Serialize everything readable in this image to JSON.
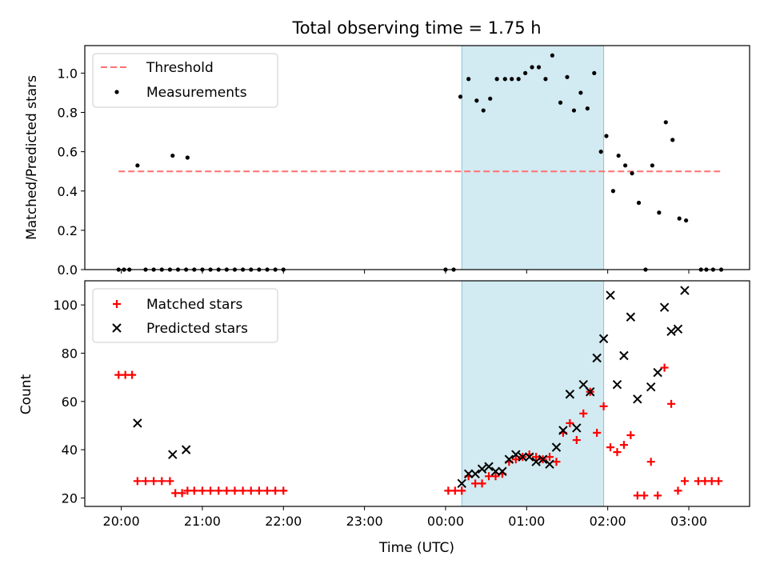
{
  "title": "Total observing time = 1.75 h",
  "colors": {
    "threshold": "#ff7070",
    "measurement": "#000000",
    "matched": "#ff0000",
    "predicted": "#000000",
    "shade": "#add8e6"
  },
  "chart_data": [
    {
      "type": "scatter",
      "ylabel": "Matched/Predicted stars",
      "xlim_hours": [
        19.55,
        27.75
      ],
      "ylim": [
        0,
        1.14
      ],
      "shaded_interval": [
        "00:12",
        "01:57"
      ],
      "xticks": [
        "20:00",
        "21:00",
        "22:00",
        "23:00",
        "00:00",
        "01:00",
        "02:00",
        "03:00"
      ],
      "yticks": [
        "0.0",
        "0.2",
        "0.4",
        "0.6",
        "0.8",
        "1.0"
      ],
      "legend": {
        "placement": "upper left",
        "threshold_label": "Threshold",
        "measurements_label": "Measurements"
      },
      "threshold": {
        "value": 0.5,
        "x_start": "19:58",
        "x_end": "03:24"
      },
      "series": [
        {
          "name": "Measurements",
          "points": [
            [
              "19:58",
              0
            ],
            [
              "20:02",
              0
            ],
            [
              "20:06",
              0
            ],
            [
              "20:12",
              0.53
            ],
            [
              "20:18",
              0
            ],
            [
              "20:24",
              0
            ],
            [
              "20:30",
              0
            ],
            [
              "20:36",
              0
            ],
            [
              "20:38",
              0.58
            ],
            [
              "20:42",
              0
            ],
            [
              "20:48",
              0
            ],
            [
              "20:49",
              0.57
            ],
            [
              "20:54",
              0
            ],
            [
              "21:00",
              0
            ],
            [
              "21:06",
              0
            ],
            [
              "21:12",
              0
            ],
            [
              "21:18",
              0
            ],
            [
              "21:24",
              0
            ],
            [
              "21:30",
              0
            ],
            [
              "21:36",
              0
            ],
            [
              "21:42",
              0
            ],
            [
              "21:48",
              0
            ],
            [
              "21:54",
              0
            ],
            [
              "22:00",
              0
            ],
            [
              "00:00",
              0
            ],
            [
              "00:06",
              0
            ],
            [
              "00:11",
              0.88
            ],
            [
              "00:17",
              0.97
            ],
            [
              "00:23",
              0.86
            ],
            [
              "00:28",
              0.81
            ],
            [
              "00:33",
              0.87
            ],
            [
              "00:38",
              0.97
            ],
            [
              "00:44",
              0.97
            ],
            [
              "00:49",
              0.97
            ],
            [
              "00:54",
              0.97
            ],
            [
              "00:59",
              1.0
            ],
            [
              "01:04",
              1.03
            ],
            [
              "01:09",
              1.03
            ],
            [
              "01:14",
              0.97
            ],
            [
              "01:19",
              1.09
            ],
            [
              "01:25",
              0.85
            ],
            [
              "01:30",
              0.98
            ],
            [
              "01:35",
              0.81
            ],
            [
              "01:40",
              0.9
            ],
            [
              "01:45",
              0.82
            ],
            [
              "01:50",
              1.0
            ],
            [
              "01:55",
              0.6
            ],
            [
              "01:59",
              0.68
            ],
            [
              "02:04",
              0.4
            ],
            [
              "02:08",
              0.58
            ],
            [
              "02:13",
              0.53
            ],
            [
              "02:18",
              0.49
            ],
            [
              "02:23",
              0.34
            ],
            [
              "02:28",
              0
            ],
            [
              "02:33",
              0.53
            ],
            [
              "02:38",
              0.29
            ],
            [
              "02:43",
              0.75
            ],
            [
              "02:48",
              0.66
            ],
            [
              "02:53",
              0.26
            ],
            [
              "02:58",
              0.25
            ],
            [
              "03:09",
              0
            ],
            [
              "03:13",
              0
            ],
            [
              "03:18",
              0
            ],
            [
              "03:24",
              0
            ]
          ]
        }
      ]
    },
    {
      "type": "scatter",
      "xlabel": "Time (UTC)",
      "ylabel": "Count",
      "xlim_hours": [
        19.55,
        27.75
      ],
      "ylim": [
        16.5,
        110
      ],
      "shaded_interval": [
        "00:12",
        "01:57"
      ],
      "xticks": [
        "20:00",
        "21:00",
        "22:00",
        "23:00",
        "00:00",
        "01:00",
        "02:00",
        "03:00"
      ],
      "yticks": [
        "20",
        "40",
        "60",
        "80",
        "100"
      ],
      "legend": {
        "placement": "upper left"
      },
      "series": [
        {
          "name": "Matched stars",
          "points": [
            [
              "19:58",
              71
            ],
            [
              "20:03",
              71
            ],
            [
              "20:08",
              71
            ],
            [
              "20:12",
              27
            ],
            [
              "20:18",
              27
            ],
            [
              "20:24",
              27
            ],
            [
              "20:30",
              27
            ],
            [
              "20:36",
              27
            ],
            [
              "20:40",
              22
            ],
            [
              "20:45",
              22
            ],
            [
              "20:49",
              23
            ],
            [
              "20:54",
              23
            ],
            [
              "21:00",
              23
            ],
            [
              "21:06",
              23
            ],
            [
              "21:12",
              23
            ],
            [
              "21:18",
              23
            ],
            [
              "21:24",
              23
            ],
            [
              "21:30",
              23
            ],
            [
              "21:36",
              23
            ],
            [
              "21:42",
              23
            ],
            [
              "21:48",
              23
            ],
            [
              "21:54",
              23
            ],
            [
              "22:00",
              23
            ],
            [
              "00:02",
              23
            ],
            [
              "00:07",
              23
            ],
            [
              "00:12",
              23
            ],
            [
              "00:17",
              29
            ],
            [
              "00:22",
              26
            ],
            [
              "00:27",
              26
            ],
            [
              "00:32",
              29
            ],
            [
              "00:37",
              29
            ],
            [
              "00:42",
              30
            ],
            [
              "00:47",
              35
            ],
            [
              "00:52",
              36
            ],
            [
              "00:57",
              37
            ],
            [
              "01:02",
              38
            ],
            [
              "01:07",
              37
            ],
            [
              "01:12",
              36
            ],
            [
              "01:17",
              37
            ],
            [
              "01:22",
              35
            ],
            [
              "01:27",
              47
            ],
            [
              "01:32",
              51
            ],
            [
              "01:37",
              44
            ],
            [
              "01:42",
              55
            ],
            [
              "01:47",
              64
            ],
            [
              "01:52",
              47
            ],
            [
              "01:57",
              58
            ],
            [
              "02:02",
              41
            ],
            [
              "02:07",
              39
            ],
            [
              "02:12",
              42
            ],
            [
              "02:17",
              46
            ],
            [
              "02:22",
              21
            ],
            [
              "02:27",
              21
            ],
            [
              "02:32",
              35
            ],
            [
              "02:37",
              21
            ],
            [
              "02:42",
              74
            ],
            [
              "02:47",
              59
            ],
            [
              "02:52",
              23
            ],
            [
              "02:57",
              27
            ],
            [
              "03:07",
              27
            ],
            [
              "03:12",
              27
            ],
            [
              "03:17",
              27
            ],
            [
              "03:22",
              27
            ]
          ]
        },
        {
          "name": "Predicted stars",
          "points": [
            [
              "20:12",
              51
            ],
            [
              "20:38",
              38
            ],
            [
              "20:48",
              40
            ],
            [
              "00:12",
              26
            ],
            [
              "00:17",
              30
            ],
            [
              "00:22",
              30
            ],
            [
              "00:27",
              32
            ],
            [
              "00:32",
              33
            ],
            [
              "00:37",
              31
            ],
            [
              "00:42",
              31
            ],
            [
              "00:47",
              36
            ],
            [
              "00:52",
              38
            ],
            [
              "00:57",
              37
            ],
            [
              "01:02",
              37
            ],
            [
              "01:07",
              35
            ],
            [
              "01:12",
              36
            ],
            [
              "01:17",
              34
            ],
            [
              "01:22",
              41
            ],
            [
              "01:27",
              48
            ],
            [
              "01:32",
              63
            ],
            [
              "01:37",
              49
            ],
            [
              "01:42",
              67
            ],
            [
              "01:47",
              64
            ],
            [
              "01:52",
              78
            ],
            [
              "01:57",
              86
            ],
            [
              "02:02",
              104
            ],
            [
              "02:07",
              67
            ],
            [
              "02:12",
              79
            ],
            [
              "02:17",
              95
            ],
            [
              "02:22",
              61
            ],
            [
              "02:32",
              66
            ],
            [
              "02:37",
              72
            ],
            [
              "02:42",
              99
            ],
            [
              "02:47",
              89
            ],
            [
              "02:52",
              90
            ],
            [
              "02:57",
              106
            ]
          ]
        }
      ]
    }
  ]
}
